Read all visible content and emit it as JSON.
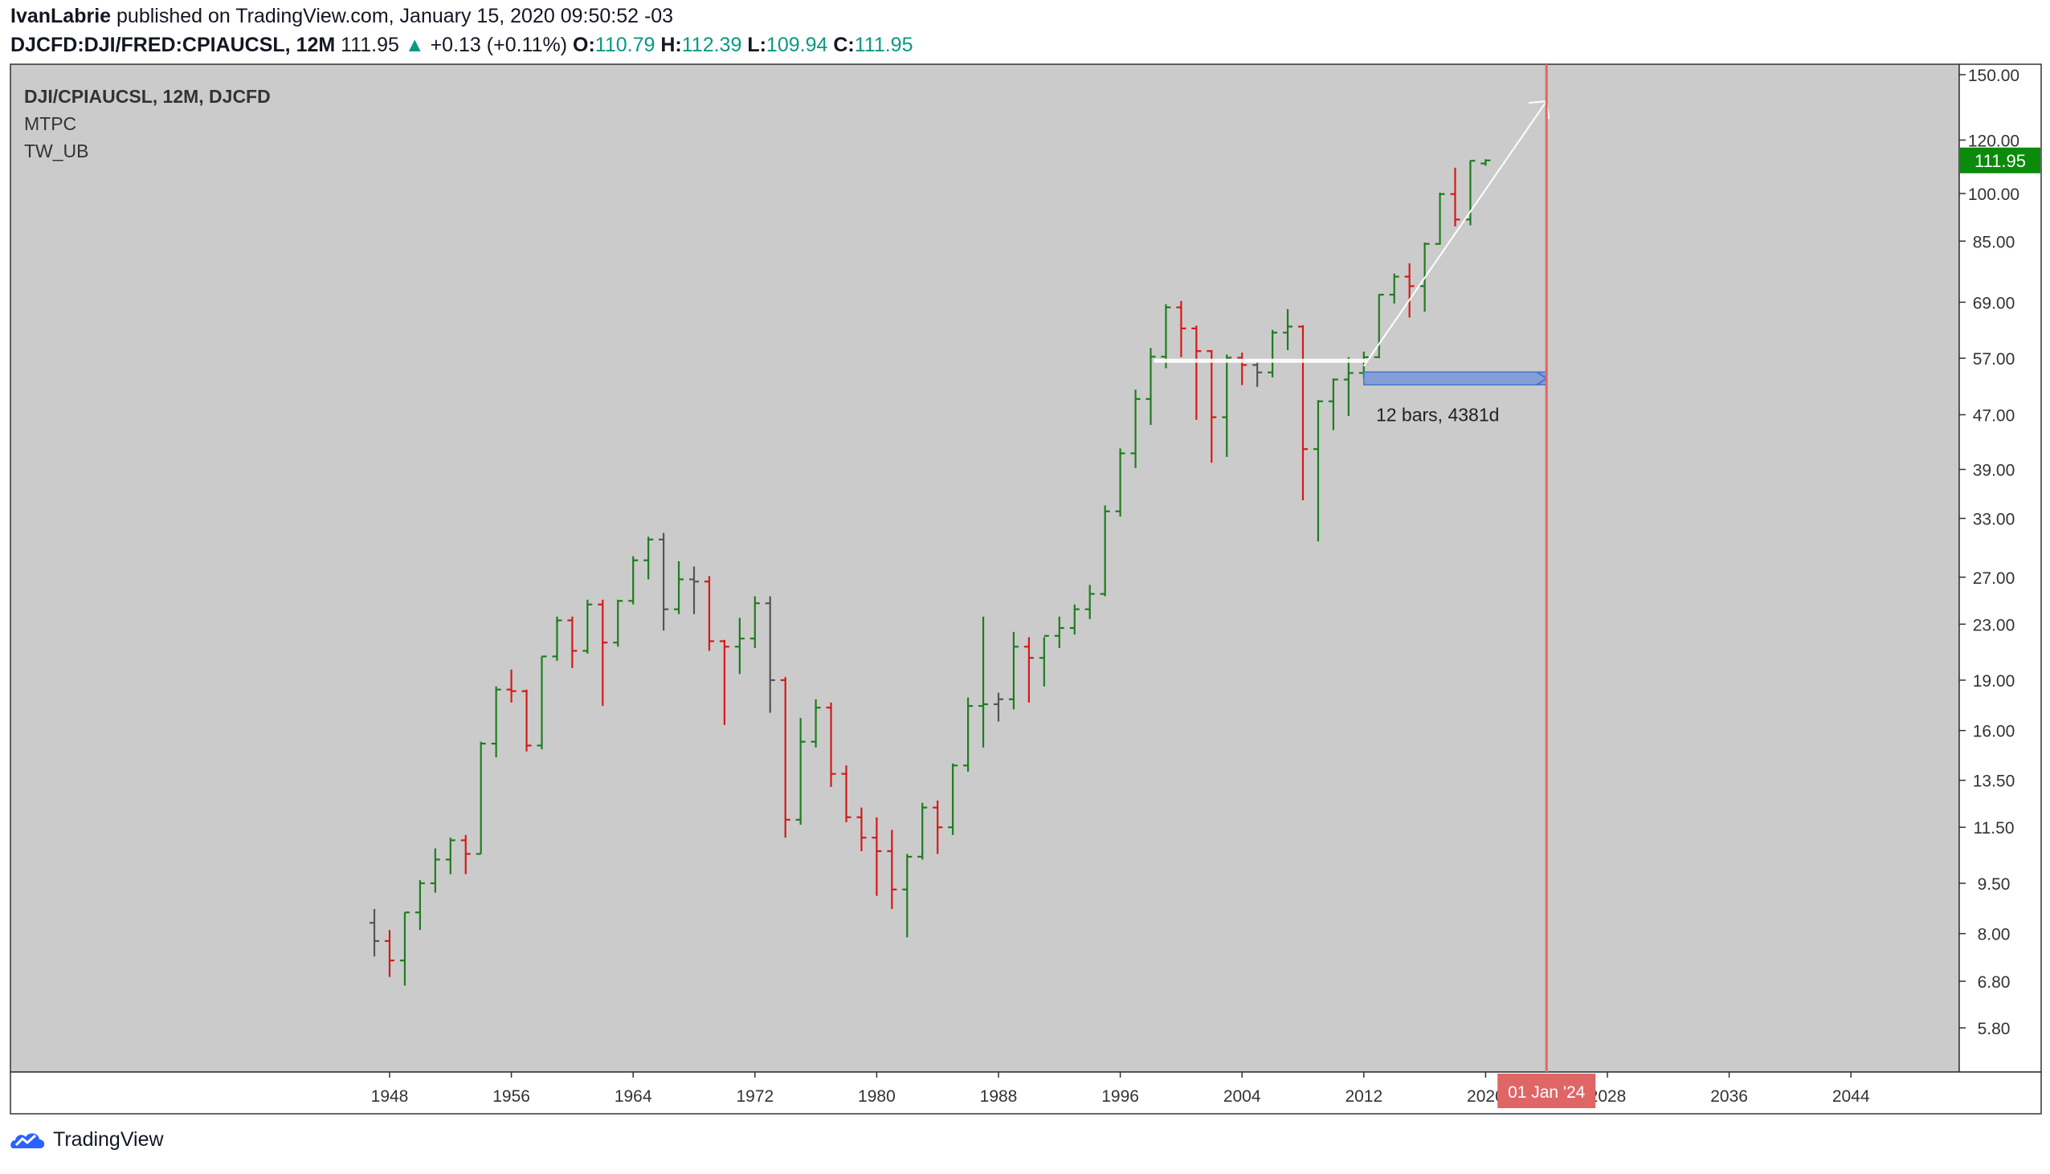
{
  "header": {
    "author": "IvanLabrie",
    "published_text": " published on TradingView.com, January 15, 2020 09:50:52 -03",
    "symbol": "DJCFD:DJI/FRED:CPIAUCSL, 12M",
    "last": "111.95",
    "up_arrow": "▲",
    "change": "+0.13 (+0.11%)",
    "o_label": "O:",
    "o_value": "110.79",
    "h_label": "H:",
    "h_value": "112.39",
    "l_label": "L:",
    "l_value": "109.94",
    "c_label": "C:",
    "c_value": "111.95"
  },
  "chart_data": {
    "type": "ohlc",
    "legend": [
      "DJI/CPIAUCSL, 12M, DJCFD",
      "MTPC",
      "TW_UB"
    ],
    "y_scale": "log",
    "y_ticks": [
      "150.00",
      "120.00",
      "100.00",
      "85.00",
      "69.00",
      "57.00",
      "47.00",
      "39.00",
      "33.00",
      "27.00",
      "23.00",
      "19.00",
      "16.00",
      "13.50",
      "11.50",
      "9.50",
      "8.00",
      "6.80",
      "5.80"
    ],
    "x_ticks": [
      "1948",
      "1956",
      "1964",
      "1972",
      "1980",
      "1988",
      "1996",
      "2004",
      "2012",
      "2020",
      "2028",
      "2036",
      "2044",
      "20"
    ],
    "last_price_label": "111.95",
    "cursor_date_label": "01 Jan '24",
    "measure_label": "12 bars, 4381d",
    "bars": [
      {
        "year": 1947,
        "o": 8.3,
        "h": 8.7,
        "l": 7.4,
        "c": 7.8
      },
      {
        "year": 1948,
        "o": 7.8,
        "h": 8.1,
        "l": 6.9,
        "c": 7.3
      },
      {
        "year": 1949,
        "o": 7.3,
        "h": 8.6,
        "l": 6.7,
        "c": 8.6
      },
      {
        "year": 1950,
        "o": 8.6,
        "h": 9.6,
        "l": 8.1,
        "c": 9.5
      },
      {
        "year": 1951,
        "o": 9.5,
        "h": 10.7,
        "l": 9.2,
        "c": 10.3
      },
      {
        "year": 1952,
        "o": 10.3,
        "h": 11.1,
        "l": 9.8,
        "c": 11.0
      },
      {
        "year": 1953,
        "o": 11.0,
        "h": 11.2,
        "l": 9.8,
        "c": 10.5
      },
      {
        "year": 1954,
        "o": 10.5,
        "h": 15.4,
        "l": 10.5,
        "c": 15.3
      },
      {
        "year": 1955,
        "o": 15.3,
        "h": 18.6,
        "l": 14.6,
        "c": 18.4
      },
      {
        "year": 1956,
        "o": 18.4,
        "h": 19.7,
        "l": 17.6,
        "c": 18.3
      },
      {
        "year": 1957,
        "o": 18.3,
        "h": 18.4,
        "l": 14.9,
        "c": 15.2
      },
      {
        "year": 1958,
        "o": 15.2,
        "h": 20.6,
        "l": 15.0,
        "c": 20.6
      },
      {
        "year": 1959,
        "o": 20.6,
        "h": 23.6,
        "l": 20.3,
        "c": 23.3
      },
      {
        "year": 1960,
        "o": 23.3,
        "h": 23.6,
        "l": 19.8,
        "c": 21.0
      },
      {
        "year": 1961,
        "o": 21.0,
        "h": 25.0,
        "l": 20.8,
        "c": 24.6
      },
      {
        "year": 1962,
        "o": 24.6,
        "h": 25.0,
        "l": 17.4,
        "c": 21.6
      },
      {
        "year": 1963,
        "o": 21.6,
        "h": 25.0,
        "l": 21.3,
        "c": 24.9
      },
      {
        "year": 1964,
        "o": 24.9,
        "h": 29.0,
        "l": 24.6,
        "c": 28.6
      },
      {
        "year": 1965,
        "o": 28.6,
        "h": 31.0,
        "l": 26.8,
        "c": 30.7
      },
      {
        "year": 1966,
        "o": 30.7,
        "h": 31.4,
        "l": 22.5,
        "c": 24.2
      },
      {
        "year": 1967,
        "o": 24.2,
        "h": 28.5,
        "l": 23.8,
        "c": 26.8
      },
      {
        "year": 1968,
        "o": 26.8,
        "h": 28.0,
        "l": 23.8,
        "c": 26.6
      },
      {
        "year": 1969,
        "o": 26.6,
        "h": 27.1,
        "l": 21.0,
        "c": 21.7
      },
      {
        "year": 1970,
        "o": 21.7,
        "h": 21.8,
        "l": 16.3,
        "c": 21.3
      },
      {
        "year": 1971,
        "o": 21.3,
        "h": 23.5,
        "l": 19.4,
        "c": 21.9
      },
      {
        "year": 1972,
        "o": 21.9,
        "h": 25.3,
        "l": 21.2,
        "c": 24.7
      },
      {
        "year": 1973,
        "o": 24.7,
        "h": 25.3,
        "l": 17.0,
        "c": 19.0
      },
      {
        "year": 1974,
        "o": 19.0,
        "h": 19.2,
        "l": 11.1,
        "c": 11.8
      },
      {
        "year": 1975,
        "o": 11.8,
        "h": 16.7,
        "l": 11.6,
        "c": 15.4
      },
      {
        "year": 1976,
        "o": 15.4,
        "h": 17.8,
        "l": 15.1,
        "c": 17.3
      },
      {
        "year": 1977,
        "o": 17.3,
        "h": 17.6,
        "l": 13.2,
        "c": 13.8
      },
      {
        "year": 1978,
        "o": 13.8,
        "h": 14.2,
        "l": 11.7,
        "c": 11.9
      },
      {
        "year": 1979,
        "o": 11.9,
        "h": 12.3,
        "l": 10.6,
        "c": 11.1
      },
      {
        "year": 1980,
        "o": 11.1,
        "h": 11.9,
        "l": 9.1,
        "c": 10.6
      },
      {
        "year": 1981,
        "o": 10.6,
        "h": 11.4,
        "l": 8.7,
        "c": 9.3
      },
      {
        "year": 1982,
        "o": 9.3,
        "h": 10.5,
        "l": 7.9,
        "c": 10.4
      },
      {
        "year": 1983,
        "o": 10.4,
        "h": 12.5,
        "l": 10.3,
        "c": 12.3
      },
      {
        "year": 1984,
        "o": 12.3,
        "h": 12.6,
        "l": 10.5,
        "c": 11.5
      },
      {
        "year": 1985,
        "o": 11.5,
        "h": 14.3,
        "l": 11.2,
        "c": 14.2
      },
      {
        "year": 1986,
        "o": 14.2,
        "h": 17.9,
        "l": 13.9,
        "c": 17.4
      },
      {
        "year": 1987,
        "o": 17.4,
        "h": 23.6,
        "l": 15.1,
        "c": 17.5
      },
      {
        "year": 1988,
        "o": 17.5,
        "h": 18.2,
        "l": 16.5,
        "c": 17.8
      },
      {
        "year": 1989,
        "o": 17.8,
        "h": 22.4,
        "l": 17.2,
        "c": 21.3
      },
      {
        "year": 1990,
        "o": 21.3,
        "h": 22.0,
        "l": 17.6,
        "c": 20.5
      },
      {
        "year": 1991,
        "o": 20.5,
        "h": 22.0,
        "l": 18.6,
        "c": 22.1
      },
      {
        "year": 1992,
        "o": 22.1,
        "h": 23.6,
        "l": 21.2,
        "c": 22.7
      },
      {
        "year": 1993,
        "o": 22.7,
        "h": 24.6,
        "l": 22.2,
        "c": 24.2
      },
      {
        "year": 1994,
        "o": 24.2,
        "h": 26.3,
        "l": 23.4,
        "c": 25.5
      },
      {
        "year": 1995,
        "o": 25.5,
        "h": 34.5,
        "l": 25.3,
        "c": 33.8
      },
      {
        "year": 1996,
        "o": 33.8,
        "h": 41.9,
        "l": 33.2,
        "c": 41.2
      },
      {
        "year": 1997,
        "o": 41.2,
        "h": 51.2,
        "l": 39.2,
        "c": 49.6
      },
      {
        "year": 1998,
        "o": 49.6,
        "h": 59.0,
        "l": 45.4,
        "c": 57.3
      },
      {
        "year": 1999,
        "o": 57.3,
        "h": 68.5,
        "l": 55.1,
        "c": 67.8
      },
      {
        "year": 2000,
        "o": 67.8,
        "h": 69.3,
        "l": 57.2,
        "c": 63.1
      },
      {
        "year": 2001,
        "o": 63.1,
        "h": 63.7,
        "l": 46.2,
        "c": 58.4
      },
      {
        "year": 2002,
        "o": 58.4,
        "h": 58.6,
        "l": 39.9,
        "c": 46.6
      },
      {
        "year": 2003,
        "o": 46.6,
        "h": 57.7,
        "l": 40.7,
        "c": 57.1
      },
      {
        "year": 2004,
        "o": 57.1,
        "h": 58.1,
        "l": 52.0,
        "c": 55.7
      },
      {
        "year": 2005,
        "o": 55.7,
        "h": 56.3,
        "l": 51.7,
        "c": 54.3
      },
      {
        "year": 2006,
        "o": 54.3,
        "h": 62.8,
        "l": 53.4,
        "c": 62.2
      },
      {
        "year": 2007,
        "o": 62.2,
        "h": 67.4,
        "l": 58.6,
        "c": 63.5
      },
      {
        "year": 2008,
        "o": 63.5,
        "h": 63.8,
        "l": 35.1,
        "c": 41.8
      },
      {
        "year": 2009,
        "o": 41.8,
        "h": 49.4,
        "l": 30.5,
        "c": 49.2
      },
      {
        "year": 2010,
        "o": 49.2,
        "h": 53.2,
        "l": 44.6,
        "c": 53.0
      },
      {
        "year": 2011,
        "o": 53.0,
        "h": 57.2,
        "l": 46.8,
        "c": 54.2
      },
      {
        "year": 2012,
        "o": 54.2,
        "h": 58.3,
        "l": 53.4,
        "c": 57.2
      },
      {
        "year": 2013,
        "o": 57.2,
        "h": 70.9,
        "l": 57.0,
        "c": 70.8
      },
      {
        "year": 2014,
        "o": 70.8,
        "h": 76.1,
        "l": 68.7,
        "c": 75.3
      },
      {
        "year": 2015,
        "o": 75.3,
        "h": 78.8,
        "l": 65.5,
        "c": 72.9
      },
      {
        "year": 2016,
        "o": 72.9,
        "h": 84.6,
        "l": 66.8,
        "c": 84.2
      },
      {
        "year": 2017,
        "o": 84.2,
        "h": 100.3,
        "l": 84.0,
        "c": 99.8
      },
      {
        "year": 2018,
        "o": 99.8,
        "h": 109.2,
        "l": 89.4,
        "c": 91.5
      },
      {
        "year": 2019,
        "o": 91.5,
        "h": 111.9,
        "l": 89.7,
        "c": 111.8
      },
      {
        "year": 2020,
        "o": 110.79,
        "h": 112.39,
        "l": 109.94,
        "c": 111.95
      }
    ],
    "colors": {
      "up": "#1e7d1e",
      "down": "#d61919",
      "neutral": "#555555",
      "background": "#cbcbcb",
      "price_tag": "#0b8a0b",
      "vline": "#e06666",
      "measure": "#6c8fdb"
    }
  },
  "brand": {
    "name": "TradingView"
  }
}
